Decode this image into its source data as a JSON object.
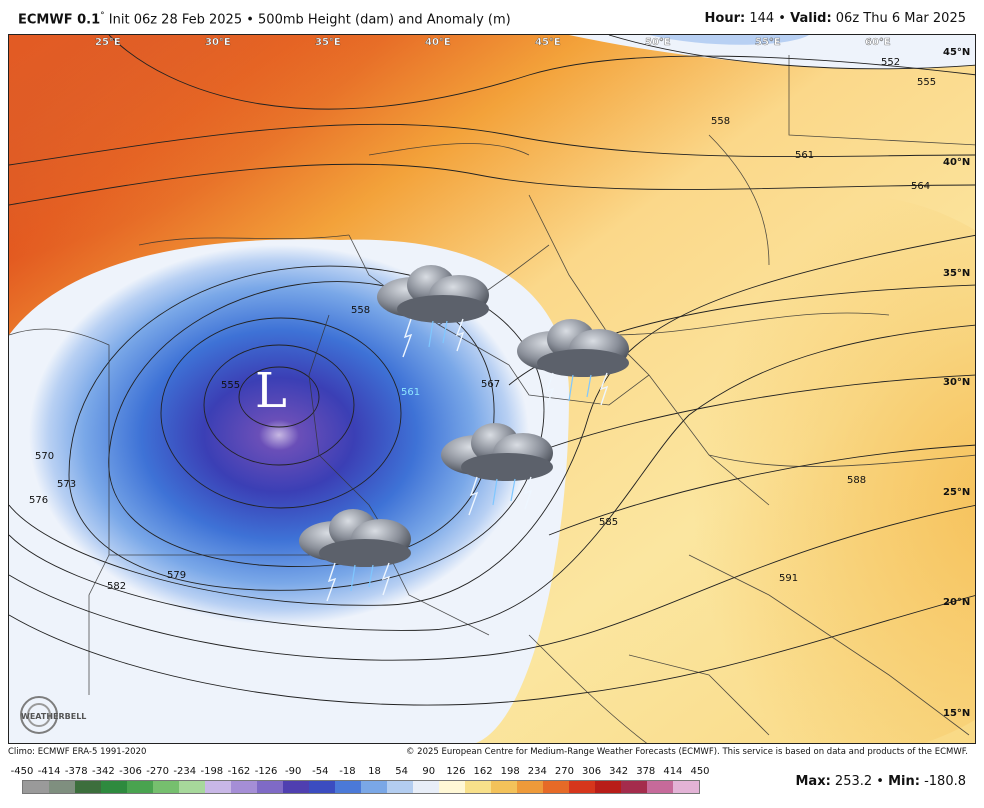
{
  "header": {
    "model": "ECMWF 0.1",
    "degree": "°",
    "init_text": " Init 06z 28 Feb 2025 • 500mb Height (dam) and Anomaly (m)",
    "hour_label": "Hour:",
    "hour_value": " 144 • ",
    "valid_label": "Valid:",
    "valid_value": " 06z Thu 6 Mar 2025"
  },
  "map": {
    "low_marker": "L",
    "latitude_labels": [
      "45°N",
      "40°N",
      "35°N",
      "30°N",
      "25°N",
      "20°N",
      "15°N"
    ],
    "longitude_labels": [
      "25°E",
      "30°E",
      "35°E",
      "40°E",
      "45°E",
      "50°E",
      "55°E",
      "60°E"
    ],
    "contour_labels": [
      "552",
      "555",
      "558",
      "561",
      "564",
      "567",
      "570",
      "573",
      "576",
      "579",
      "582",
      "585",
      "588",
      "591",
      "555",
      "558",
      "561"
    ],
    "weather_icons": [
      "storm-cloud-icon",
      "storm-cloud-icon",
      "storm-cloud-icon",
      "storm-cloud-icon"
    ],
    "logo_text": "WEATHERBELL"
  },
  "credits": {
    "climo": "Climo: ECMWF ERA-5 1991-2020",
    "copyright": "© 2025 European Centre for Medium-Range Weather Forecasts (ECMWF). This service is based on data and products of the ECMWF."
  },
  "scale": {
    "ticks": [
      "-450",
      "-414",
      "-378",
      "-342",
      "-306",
      "-270",
      "-234",
      "-198",
      "-162",
      "-126",
      "-90",
      "-54",
      "-18",
      "18",
      "54",
      "90",
      "126",
      "162",
      "198",
      "234",
      "270",
      "306",
      "342",
      "378",
      "414",
      "450"
    ],
    "colors": [
      "#9a9a9a",
      "#7f8f7f",
      "#3c6e3c",
      "#2e8a3e",
      "#49a34f",
      "#76bf6e",
      "#a7d89b",
      "#c8b7e6",
      "#a58ed6",
      "#7f6ac6",
      "#4f3fb0",
      "#3b4cc0",
      "#4b79d8",
      "#7aa7e6",
      "#b3cdf0",
      "#e8eef8",
      "#fff8d6",
      "#f8e08a",
      "#f3c25a",
      "#ee9a3a",
      "#e66a27",
      "#d6361c",
      "#b81d18",
      "#a42c4c",
      "#c66a9a",
      "#e3b3d6"
    ],
    "max_label": "Max:",
    "max_value": " 253.2",
    "sep": " • ",
    "min_label": "Min:",
    "min_value": " -180.8"
  }
}
